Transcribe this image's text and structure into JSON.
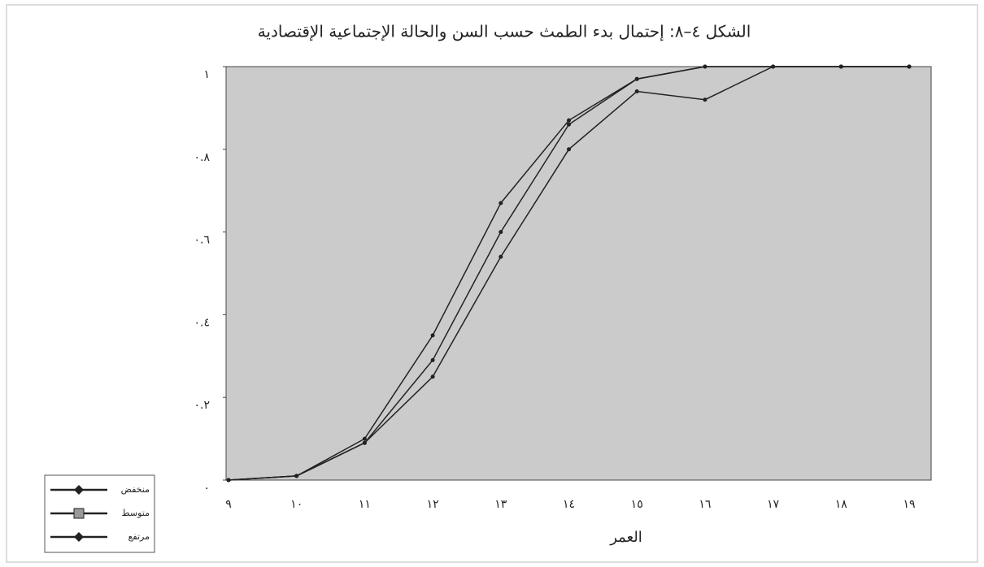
{
  "chart_data": {
    "type": "line",
    "title": "الشكل ٤–٨: إحتمال بدء الطمث حسب السن والحالة الإجتماعية الإقتصادية",
    "x_label": "العمر",
    "categories": [
      "٩",
      "١٠",
      "١١",
      "١٢",
      "١٣",
      "١٤",
      "١٥",
      "١٦",
      "١٧",
      "١٨",
      "١٩"
    ],
    "series": [
      {
        "name": "منخفض",
        "color": "#222222",
        "marker": "diamond",
        "values": [
          0,
          0.01,
          0.09,
          0.25,
          0.54,
          0.8,
          0.94,
          0.92,
          1,
          1,
          1
        ]
      },
      {
        "name": "متوسط",
        "color": "#222222",
        "marker": "square",
        "values": [
          0,
          0.01,
          0.09,
          0.29,
          0.6,
          0.86,
          0.97,
          1,
          1,
          1,
          1
        ]
      },
      {
        "name": "مرتفع",
        "color": "#222222",
        "marker": "diamond",
        "values": [
          0,
          0.01,
          0.1,
          0.35,
          0.67,
          0.87,
          0.97,
          1,
          1,
          1,
          1
        ]
      }
    ],
    "ylim": [
      0,
      1
    ],
    "yticks": [
      {
        "value": 0,
        "label": "٠"
      },
      {
        "value": 0.2,
        "label": "٠.٢"
      },
      {
        "value": 0.4,
        "label": "٠.٤"
      },
      {
        "value": 0.6,
        "label": "٠.٦"
      },
      {
        "value": 0.8,
        "label": "٠.٨"
      },
      {
        "value": 1,
        "label": "١"
      }
    ],
    "grid": false,
    "legend": "bottom-left"
  }
}
